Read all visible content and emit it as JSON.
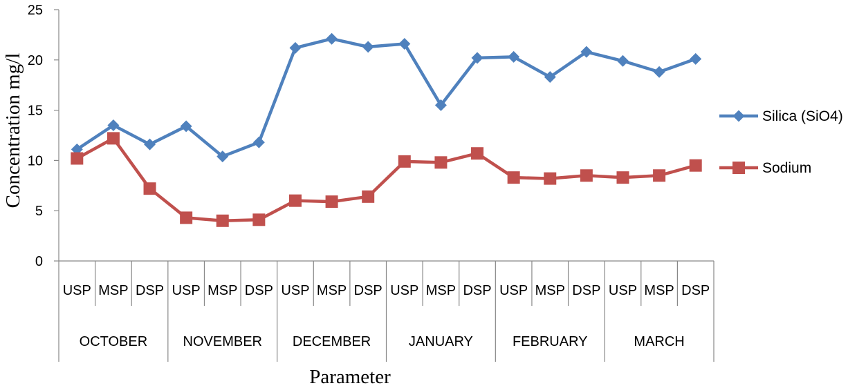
{
  "chart_data": {
    "type": "line",
    "title": "",
    "xlabel": "Parameter",
    "ylabel": "Concentration mg/l",
    "ylim": [
      0,
      25
    ],
    "yticks": [
      0,
      5,
      10,
      15,
      20,
      25
    ],
    "grid": false,
    "legend_position": "right",
    "groups": [
      {
        "label": "OCTOBER",
        "subcategories": [
          "USP",
          "MSP",
          "DSP"
        ]
      },
      {
        "label": "NOVEMBER",
        "subcategories": [
          "USP",
          "MSP",
          "DSP"
        ]
      },
      {
        "label": "DECEMBER",
        "subcategories": [
          "USP",
          "MSP",
          "DSP"
        ]
      },
      {
        "label": "JANUARY",
        "subcategories": [
          "USP",
          "MSP",
          "DSP"
        ]
      },
      {
        "label": "FEBRUARY",
        "subcategories": [
          "USP",
          "MSP",
          "DSP"
        ]
      },
      {
        "label": "MARCH",
        "subcategories": [
          "USP",
          "MSP",
          "DSP"
        ]
      }
    ],
    "series": [
      {
        "name": "Silica (SiO4)",
        "color": "#4F81BD",
        "marker": "diamond",
        "values": [
          11.1,
          13.5,
          11.6,
          13.4,
          10.4,
          11.8,
          21.2,
          22.1,
          21.3,
          21.6,
          15.5,
          20.2,
          20.3,
          18.3,
          20.8,
          19.9,
          18.8,
          20.1
        ]
      },
      {
        "name": "Sodium",
        "color": "#C0504D",
        "marker": "square",
        "values": [
          10.2,
          12.2,
          7.2,
          4.3,
          4.0,
          4.1,
          6.0,
          5.9,
          6.4,
          9.9,
          9.8,
          10.7,
          8.3,
          8.2,
          8.5,
          8.3,
          8.5,
          9.5
        ]
      }
    ]
  }
}
